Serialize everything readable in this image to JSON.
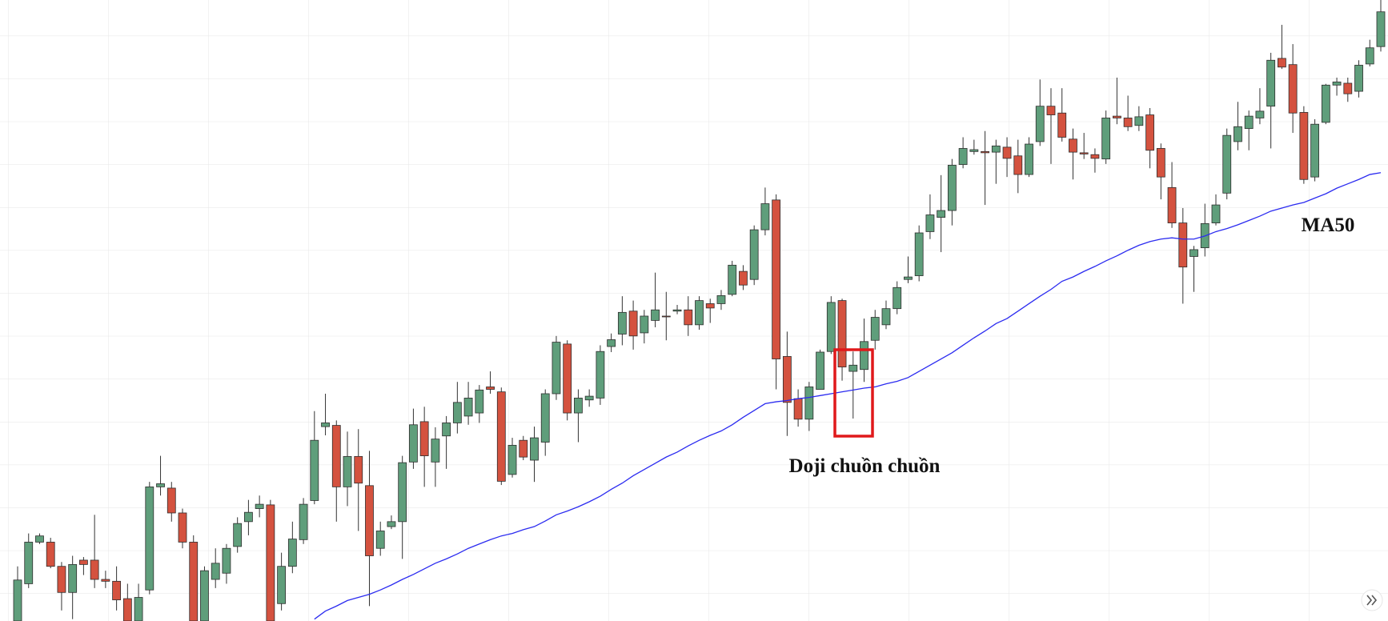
{
  "chart_data": {
    "type": "candlestick",
    "ylim": [
      0,
      100
    ],
    "grid": true,
    "up_color": "#5f9e7b",
    "down_color": "#d4523f",
    "open": [
      0,
      6,
      12.7,
      12.7,
      8.8,
      4.6,
      9.8,
      9.8,
      6.7,
      6.4,
      3.6,
      0,
      5,
      21.6,
      21.4,
      17.4,
      12.7,
      0,
      6.7,
      7.7,
      12,
      16,
      18.1,
      18.7,
      2.8,
      8.8,
      13.1,
      19.4,
      31.3,
      31.5,
      21.6,
      26.5,
      21.8,
      11.7,
      15.2,
      16,
      25.6,
      32.1,
      25.6,
      29.8,
      31.9,
      33,
      33.5,
      37.7,
      36.9,
      23.6,
      29.1,
      25.9,
      28.8,
      36.6,
      44.6,
      33.5,
      35.6,
      35.9,
      44.2,
      46.2,
      49.9,
      46.4,
      48.4,
      49.1,
      49.9,
      50.1,
      47.7,
      51.1,
      51.1,
      52.6,
      56.3,
      55,
      63,
      67.8,
      42.6,
      35.8,
      32.5,
      37.3,
      43.4,
      51.6,
      40.2,
      40.5,
      45.2,
      47.7,
      50.3,
      55,
      55.6,
      62.7,
      65,
      66.1,
      73.5,
      75.6,
      75.6,
      75.5,
      76.3,
      74.9,
      71.9,
      77.2,
      82.9,
      81.8,
      77.6,
      75.4,
      75.1,
      74.4,
      81.3,
      81,
      79.8,
      81.5,
      76.1,
      69.8,
      64.1,
      58.7,
      60.1,
      64.1,
      68.9,
      77.2,
      79.3,
      81,
      82.9,
      90.6,
      89.6,
      81.9,
      71.5,
      80.3,
      86.3,
      86.6,
      85.3,
      89.7,
      92.5
    ],
    "high": [
      8.8,
      14.1,
      14.1,
      13.4,
      9.5,
      10.5,
      10.3,
      17.1,
      8.1,
      8.8,
      6,
      6,
      22.4,
      26.6,
      22.4,
      18.1,
      13.8,
      8.8,
      11.7,
      12.4,
      16.7,
      19.5,
      20.2,
      19.5,
      11,
      16,
      19.8,
      33.8,
      36.6,
      32.3,
      30.5,
      30.9,
      27.4,
      16,
      17,
      26.6,
      34.2,
      34.5,
      31.2,
      33,
      38.5,
      38.5,
      38,
      40.2,
      37.6,
      29.5,
      29.8,
      31.3,
      37.3,
      45.9,
      45.2,
      37.3,
      37.3,
      44.4,
      46.3,
      52.3,
      51.6,
      50.1,
      56.1,
      53,
      50.9,
      52.3,
      52.3,
      51.9,
      53.3,
      58,
      57.3,
      63.7,
      69.8,
      68.7,
      46.6,
      37.3,
      38.5,
      43.7,
      52.3,
      51.9,
      43.4,
      48.7,
      50.1,
      51.6,
      54.7,
      58.7,
      63.7,
      68.7,
      71.8,
      74.4,
      77.9,
      77.5,
      78.9,
      77.5,
      77.9,
      77.5,
      77.9,
      87.2,
      85.8,
      85.8,
      79.3,
      78.6,
      76.1,
      82.2,
      87.5,
      84.6,
      82.9,
      82.6,
      76.9,
      73.9,
      66.5,
      60.4,
      67.2,
      68.7,
      79.3,
      83.6,
      82.2,
      85.8,
      91.5,
      96,
      92.9,
      82.9,
      80.8,
      86.5,
      87.5,
      87.5,
      90.3,
      93.6,
      100
    ],
    "low": [
      0,
      5.3,
      12.4,
      8.5,
      1.7,
      0.3,
      7.4,
      5.3,
      5.3,
      1.7,
      0,
      0,
      4.3,
      20.2,
      16,
      11.7,
      0,
      0,
      5.3,
      6,
      11,
      13.8,
      16.7,
      0,
      1.7,
      7.7,
      12.4,
      18.8,
      29.9,
      16,
      18.5,
      14.5,
      2.4,
      10.5,
      14.8,
      10,
      24.5,
      21.6,
      21.6,
      24.5,
      30.2,
      31.6,
      31.9,
      36.6,
      21.9,
      23.1,
      25.9,
      22.4,
      26.6,
      35.6,
      32.3,
      28.8,
      34.5,
      34.8,
      43.3,
      44.4,
      43.7,
      44.7,
      47.3,
      45.2,
      49.4,
      45.9,
      46.9,
      48,
      50.1,
      52.3,
      53.3,
      54.1,
      62.1,
      37.3,
      29.8,
      31.3,
      30.6,
      37.3,
      43,
      38.7,
      32.6,
      38.5,
      43.7,
      47,
      49.4,
      54.4,
      54.7,
      61.5,
      59.4,
      63.7,
      72.9,
      75.1,
      67,
      70.4,
      71.5,
      68.9,
      71.5,
      76.5,
      73.6,
      77.2,
      71.1,
      74.4,
      72.2,
      73.6,
      80,
      78.9,
      78.9,
      72.9,
      67.9,
      63.3,
      51.1,
      53,
      58.7,
      63.7,
      67.9,
      75.8,
      75.8,
      80,
      76.1,
      88.9,
      78.6,
      70.4,
      70.8,
      80,
      84.6,
      83.6,
      84.3,
      89.3,
      91.7
    ],
    "close": [
      6.6,
      12.7,
      13.7,
      8.8,
      4.6,
      9.1,
      9.1,
      6.7,
      6.4,
      3.4,
      0,
      3.8,
      21.6,
      22.1,
      17.4,
      12.7,
      0,
      8.1,
      9.3,
      11.7,
      15.7,
      17.5,
      18.8,
      0,
      8.8,
      13.2,
      18.8,
      29.1,
      31.9,
      21.6,
      26.5,
      22.2,
      10.5,
      14.5,
      16,
      25.5,
      31.6,
      26.6,
      29.3,
      31.9,
      35.2,
      35.9,
      37.2,
      37.3,
      22.5,
      28.3,
      26.4,
      29.5,
      36.6,
      44.9,
      33.5,
      35.9,
      36.2,
      43.4,
      45.3,
      49.7,
      45.9,
      49.1,
      50.1,
      49,
      50.1,
      47.7,
      51.6,
      50.4,
      52.4,
      57.3,
      54.1,
      63,
      67.2,
      42.2,
      35.2,
      32.5,
      37.7,
      43.3,
      51.3,
      40.9,
      41.2,
      45,
      48.9,
      50.3,
      53.7,
      55.4,
      62.5,
      65.4,
      66.1,
      73.4,
      76.1,
      75.9,
      75.4,
      76.5,
      74.5,
      71.9,
      76.8,
      82.9,
      81.5,
      77.9,
      75.5,
      75.2,
      74.5,
      81,
      81,
      79.6,
      81.2,
      75.8,
      71.5,
      64.1,
      57,
      59.8,
      64,
      67,
      78.2,
      79.6,
      81.3,
      82.1,
      90.3,
      89.2,
      81.8,
      71.1,
      80,
      86.3,
      86.8,
      84.9,
      89.5,
      92.3,
      98.1
    ],
    "ma": {
      "name": "MA50",
      "color": "#2b2bf0",
      "values": [
        null,
        null,
        null,
        null,
        null,
        null,
        null,
        null,
        null,
        null,
        null,
        null,
        null,
        null,
        null,
        null,
        null,
        null,
        null,
        null,
        null,
        null,
        null,
        null,
        null,
        null,
        null,
        0.3,
        1.6,
        2.4,
        3.3,
        3.8,
        4.3,
        5,
        5.8,
        6.7,
        7.5,
        8.4,
        9.3,
        10,
        10.8,
        11.7,
        12.4,
        13.1,
        13.7,
        14.1,
        14.7,
        15.2,
        16.1,
        17.1,
        17.7,
        18.4,
        19.2,
        20.1,
        21.2,
        22.2,
        23.4,
        24.4,
        25.4,
        26.4,
        27.2,
        28.2,
        29.1,
        29.9,
        30.6,
        31.6,
        32.8,
        33.9,
        35,
        35.3,
        35.5,
        35.8,
        36,
        36.3,
        36.6,
        36.9,
        37.2,
        37.5,
        37.7,
        38.2,
        38.6,
        39.2,
        40.2,
        41.2,
        42.2,
        43.2,
        44.4,
        45.6,
        46.7,
        47.9,
        48.7,
        49.9,
        51.1,
        52.3,
        53.4,
        54.7,
        55.4,
        56.3,
        57.1,
        58,
        58.8,
        59.7,
        60.5,
        61.1,
        61.5,
        61.7,
        61.5,
        61.5,
        62,
        62.7,
        63.2,
        63.8,
        64.5,
        65.2,
        66,
        66.5,
        67,
        67.4,
        68.1,
        68.8,
        69.7,
        70.4,
        71.1,
        71.9,
        72.2
      ]
    },
    "annotation": "Doji chuồn chuồn"
  }
}
